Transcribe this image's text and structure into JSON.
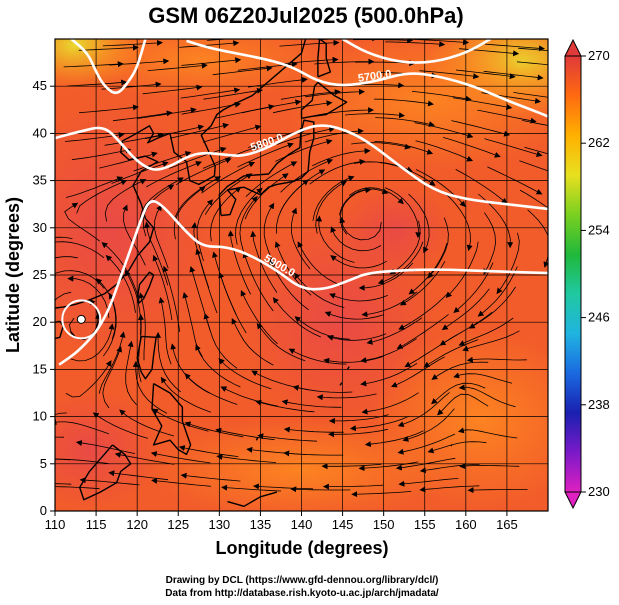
{
  "chart_data": {
    "type": "heatmap",
    "title": "GSM 06Z20Jul2025 (500.0hPa)",
    "xlabel": "Longitude (degrees)",
    "ylabel": "Latitude  (degrees)",
    "xlim": [
      110,
      170
    ],
    "ylim": [
      0,
      50
    ],
    "x_ticks": [
      110,
      115,
      120,
      125,
      130,
      135,
      140,
      145,
      150,
      155,
      160,
      165
    ],
    "y_ticks": [
      0,
      5,
      10,
      15,
      20,
      25,
      30,
      35,
      40,
      45
    ],
    "colorbar": {
      "min": 230,
      "max": 270,
      "ticks": [
        230,
        238,
        246,
        254,
        262,
        270
      ],
      "stops": [
        "#e020c0",
        "#7a1ac8",
        "#1a20b0",
        "#1a6ae0",
        "#20b4e0",
        "#20c8a0",
        "#20b83a",
        "#7ad020",
        "#e8e020",
        "#ffb000",
        "#ff6a10",
        "#e03a3a"
      ]
    },
    "contours": [
      {
        "label": "5900.0",
        "value": 5900,
        "points": [
          [
            110.5,
            15.5
          ],
          [
            113,
            17
          ],
          [
            116,
            20
          ],
          [
            118.5,
            26
          ],
          [
            120.5,
            31
          ],
          [
            121.5,
            33
          ],
          [
            123,
            32.5
          ],
          [
            126,
            29.5
          ],
          [
            128,
            28
          ],
          [
            131,
            28
          ],
          [
            134,
            27
          ],
          [
            137,
            25.5
          ],
          [
            140,
            23.5
          ],
          [
            143,
            23.5
          ],
          [
            146,
            24.5
          ],
          [
            148,
            25.2
          ],
          [
            152,
            25.5
          ],
          [
            157,
            25.6
          ],
          [
            163,
            25.4
          ],
          [
            170,
            25.2
          ]
        ]
      },
      {
        "label": "5800.0",
        "value": 5800,
        "points": [
          [
            110,
            39.5
          ],
          [
            113,
            40.2
          ],
          [
            116,
            40.8
          ],
          [
            118,
            39
          ],
          [
            120,
            37
          ],
          [
            122,
            36
          ],
          [
            124,
            36.5
          ],
          [
            126,
            37.5
          ],
          [
            128,
            38
          ],
          [
            131,
            37.7
          ],
          [
            133,
            37.6
          ],
          [
            136,
            38.5
          ],
          [
            139,
            40
          ],
          [
            142,
            41
          ],
          [
            145,
            40.5
          ],
          [
            148,
            39.2
          ],
          [
            152,
            36.5
          ],
          [
            156,
            34
          ],
          [
            160,
            33
          ],
          [
            165,
            32.5
          ],
          [
            170,
            32
          ]
        ]
      },
      {
        "label": "5700.0",
        "value": 5700,
        "points": [
          [
            126,
            49.8
          ],
          [
            129,
            49
          ],
          [
            132,
            48.5
          ],
          [
            136,
            47.8
          ],
          [
            139,
            47
          ],
          [
            142,
            45.5
          ],
          [
            145,
            45
          ],
          [
            149,
            45.5
          ],
          [
            153,
            46.5
          ],
          [
            157,
            46
          ],
          [
            161,
            45
          ],
          [
            165,
            43.5
          ],
          [
            168,
            42.5
          ],
          [
            170,
            41.8
          ]
        ]
      },
      {
        "label": "",
        "value": 5800,
        "points": [
          [
            112,
            50
          ],
          [
            114,
            48.5
          ],
          [
            115,
            46.5
          ],
          [
            116,
            45
          ],
          [
            117.5,
            44
          ],
          [
            119,
            45.5
          ],
          [
            120,
            47
          ],
          [
            121,
            50
          ]
        ]
      },
      {
        "label": "",
        "value": 5700,
        "points": [
          [
            145,
            50
          ],
          [
            148,
            48.5
          ],
          [
            152,
            47.5
          ],
          [
            156,
            47.5
          ],
          [
            160,
            48.5
          ],
          [
            163,
            50
          ]
        ]
      }
    ],
    "typhoon_center": {
      "lon": 113.2,
      "lat": 20.3
    }
  },
  "credits": {
    "line1": "Drawing by DCL (https://www.gfd-dennou.org/library/dcl/)",
    "line2": "Data from http://database.rish.kyoto-u.ac.jp/arch/jmadata/"
  }
}
